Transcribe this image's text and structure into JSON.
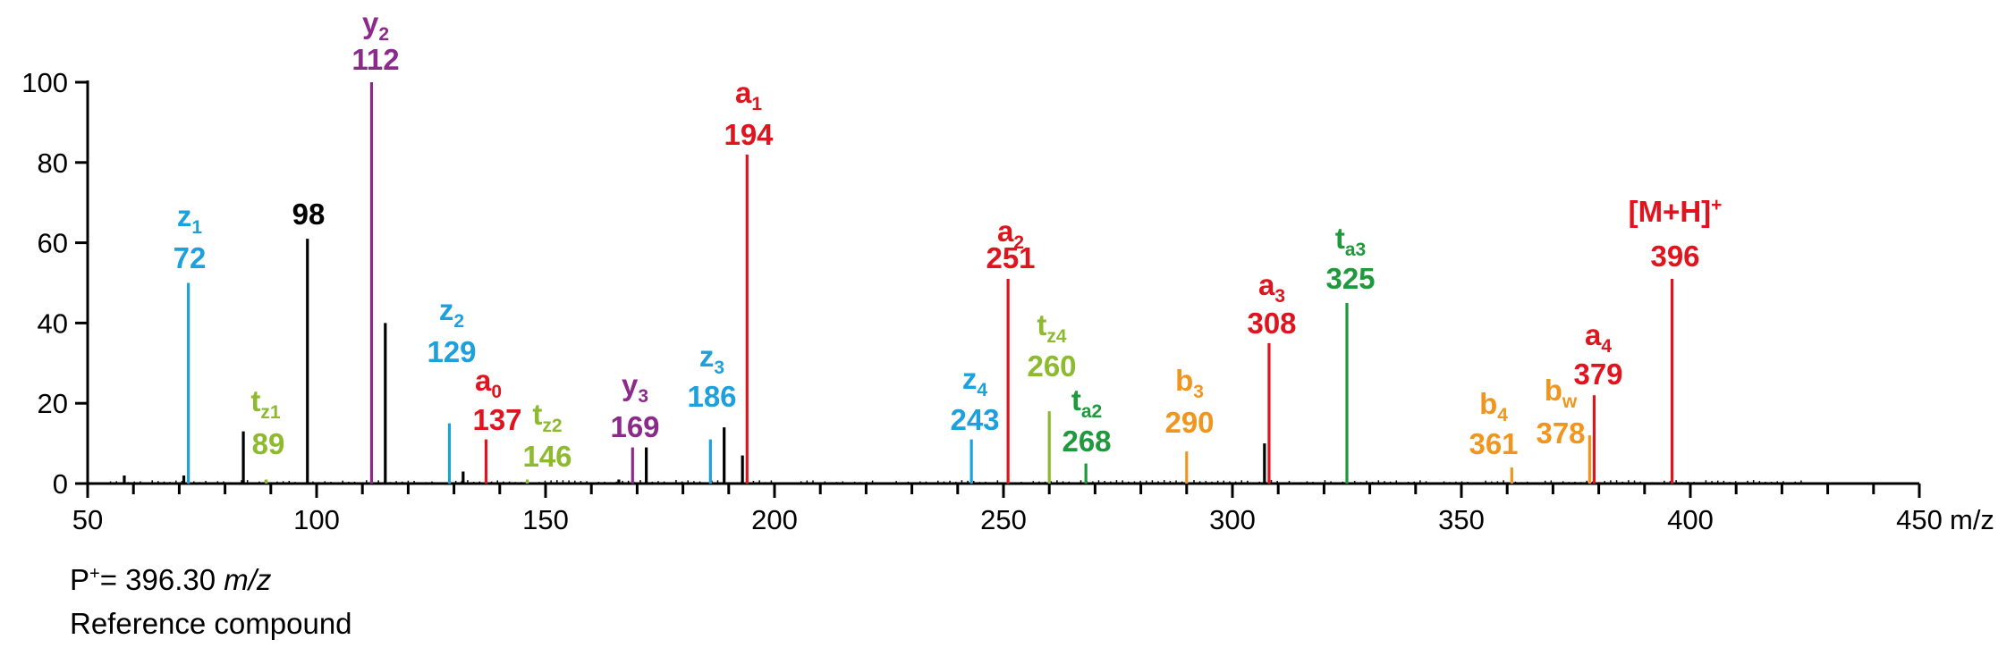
{
  "colors": {
    "z": "#1ea0dc",
    "y": "#8c2a8c",
    "a": "#e0141e",
    "t_light": "#8dba2e",
    "t_dark": "#1e9a3c",
    "b": "#f0961e",
    "unlabeled": "#000000"
  },
  "precursor": {
    "prefix": "P",
    "sup": "+",
    "eq": "= 396.30 ",
    "unit": "m/z"
  },
  "caption": "Reference compound",
  "chart_data": {
    "type": "bar",
    "xlabel": "m/z",
    "ylabel": "",
    "xlim": [
      50,
      450
    ],
    "ylim": [
      0,
      100
    ],
    "xticks": [
      50,
      100,
      150,
      200,
      250,
      300,
      350,
      400,
      450
    ],
    "yticks": [
      0,
      20,
      40,
      60,
      80,
      100
    ],
    "grid": false,
    "peaks": [
      {
        "mz": 58,
        "intensity": 2,
        "color": "unlabeled"
      },
      {
        "mz": 71,
        "intensity": 2,
        "color": "unlabeled"
      },
      {
        "mz": 72,
        "intensity": 50,
        "color": "z",
        "name": "z",
        "sub": "1",
        "label": "72"
      },
      {
        "mz": 84,
        "intensity": 13,
        "color": "unlabeled"
      },
      {
        "mz": 89,
        "intensity": 1,
        "color": "t_light",
        "name": "t",
        "sub": "z1",
        "label": "89"
      },
      {
        "mz": 98,
        "intensity": 61,
        "color": "unlabeled",
        "label": "98"
      },
      {
        "mz": 112,
        "intensity": 100,
        "color": "y",
        "name": "y",
        "sub": "2",
        "label": "112"
      },
      {
        "mz": 115,
        "intensity": 40,
        "color": "unlabeled"
      },
      {
        "mz": 129,
        "intensity": 15,
        "color": "z",
        "name": "z",
        "sub": "2",
        "label": "129"
      },
      {
        "mz": 132,
        "intensity": 3,
        "color": "unlabeled"
      },
      {
        "mz": 137,
        "intensity": 11,
        "color": "a",
        "name": "a",
        "sub": "0",
        "label": "137"
      },
      {
        "mz": 146,
        "intensity": 1,
        "color": "t_light",
        "name": "t",
        "sub": "z2",
        "label": "146"
      },
      {
        "mz": 166,
        "intensity": 1,
        "color": "unlabeled"
      },
      {
        "mz": 169,
        "intensity": 9,
        "color": "y",
        "name": "y",
        "sub": "3",
        "label": "169"
      },
      {
        "mz": 172,
        "intensity": 9,
        "color": "unlabeled"
      },
      {
        "mz": 186,
        "intensity": 11,
        "color": "z",
        "name": "z",
        "sub": "3",
        "label": "186"
      },
      {
        "mz": 189,
        "intensity": 14,
        "color": "unlabeled"
      },
      {
        "mz": 193,
        "intensity": 7,
        "color": "unlabeled"
      },
      {
        "mz": 194,
        "intensity": 82,
        "color": "a",
        "name": "a",
        "sub": "1",
        "label": "194"
      },
      {
        "mz": 243,
        "intensity": 11,
        "color": "z",
        "name": "z",
        "sub": "4",
        "label": "243"
      },
      {
        "mz": 251,
        "intensity": 51,
        "color": "a",
        "name": "a",
        "sub": "2",
        "label": "251"
      },
      {
        "mz": 260,
        "intensity": 18,
        "color": "t_light",
        "name": "t",
        "sub": "z4",
        "label": "260"
      },
      {
        "mz": 268,
        "intensity": 5,
        "color": "t_dark",
        "name": "t",
        "sub": "a2",
        "label": "268"
      },
      {
        "mz": 290,
        "intensity": 8,
        "color": "b",
        "name": "b",
        "sub": "3",
        "label": "290"
      },
      {
        "mz": 307,
        "intensity": 10,
        "color": "unlabeled"
      },
      {
        "mz": 308,
        "intensity": 35,
        "color": "a",
        "name": "a",
        "sub": "3",
        "label": "308"
      },
      {
        "mz": 325,
        "intensity": 45,
        "color": "t_dark",
        "name": "t",
        "sub": "a3",
        "label": "325"
      },
      {
        "mz": 361,
        "intensity": 4,
        "color": "b",
        "name": "b",
        "sub": "4",
        "label": "361"
      },
      {
        "mz": 378,
        "intensity": 12,
        "color": "b",
        "name": "b",
        "sub": "w",
        "label": "378"
      },
      {
        "mz": 379,
        "intensity": 22,
        "color": "a",
        "name": "a",
        "sub": "4",
        "label": "379"
      },
      {
        "mz": 396,
        "intensity": 51,
        "color": "a",
        "name": "[M+H]",
        "sup": "+",
        "label": "396"
      }
    ]
  }
}
